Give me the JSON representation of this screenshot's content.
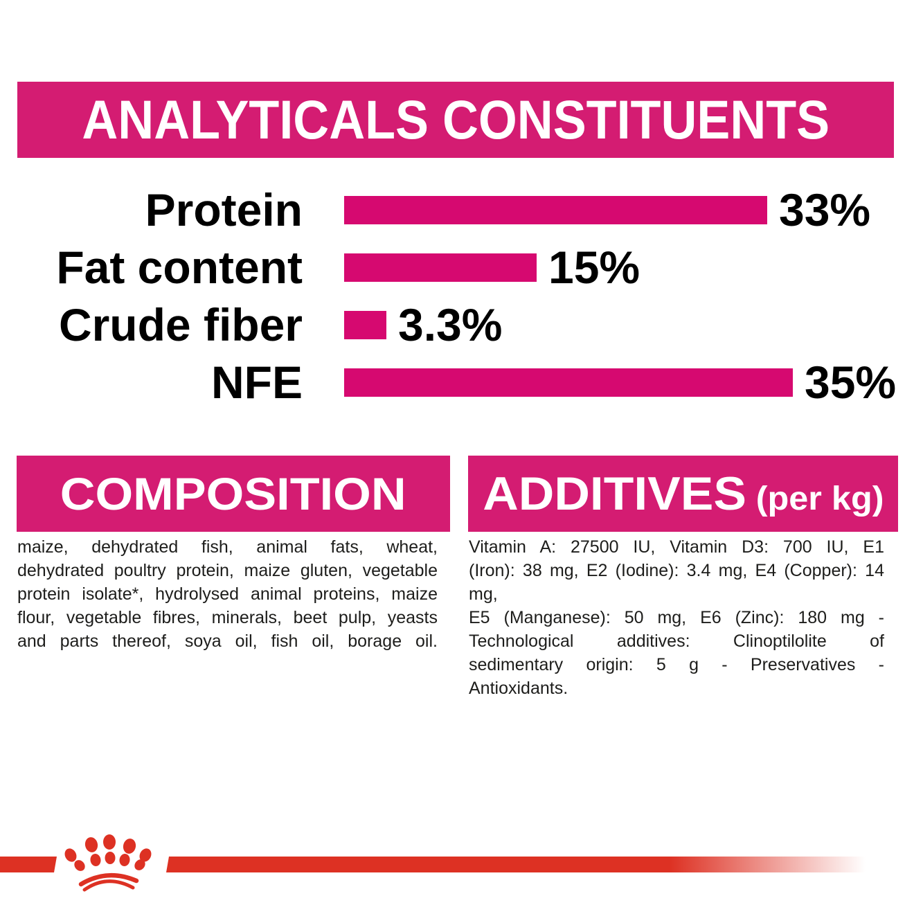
{
  "colors": {
    "magenta_banner": "#D41C72",
    "magenta_bar": "#D60970",
    "red": "#DD3123",
    "body_text": "#1D1D1B",
    "banner_text": "#FFFFFF",
    "background": "#FFFFFF"
  },
  "header": {
    "title": "ANALYTICALS CONSTITUENTS"
  },
  "chart_data": {
    "type": "bar",
    "orientation": "horizontal",
    "title": "ANALYTICALS CONSTITUENTS",
    "categories": [
      "Protein",
      "Fat content",
      "Crude fiber",
      "NFE"
    ],
    "values": [
      33,
      15,
      3.3,
      35
    ],
    "value_labels": [
      "33%",
      "15%",
      "3.3%",
      "35%"
    ],
    "unit": "percent",
    "xlim": [
      0,
      35
    ],
    "bar_color": "#D60970",
    "grid": false,
    "legend": false
  },
  "composition": {
    "heading": "COMPOSITION",
    "lines": [
      "maize, dehydrated fish, animal fats, wheat,",
      "dehydrated poultry protein, maize gluten, vegetable",
      "protein isolate*, hydrolysed animal proteins, maize",
      "flour, vegetable fibres, minerals, beet pulp, yeasts",
      "and parts thereof, soya oil, fish oil, borage oil."
    ]
  },
  "additives": {
    "heading": "ADDITIVES",
    "heading_suffix": "(per kg)",
    "lines": [
      "Vitamin A: 27500 IU, Vitamin D3: 700 IU, E1",
      "(Iron): 38 mg, E2 (Iodine): 3.4 mg, E4 (Copper): 14 mg,",
      "E5 (Manganese): 50 mg, E6 (Zinc): 180 mg -",
      "Technological additives: Clinoptilolite of",
      "sedimentary origin: 5 g - Preservatives -",
      "Antioxidants."
    ]
  },
  "footer": {
    "logo_icon": "crown-paw-logo"
  }
}
